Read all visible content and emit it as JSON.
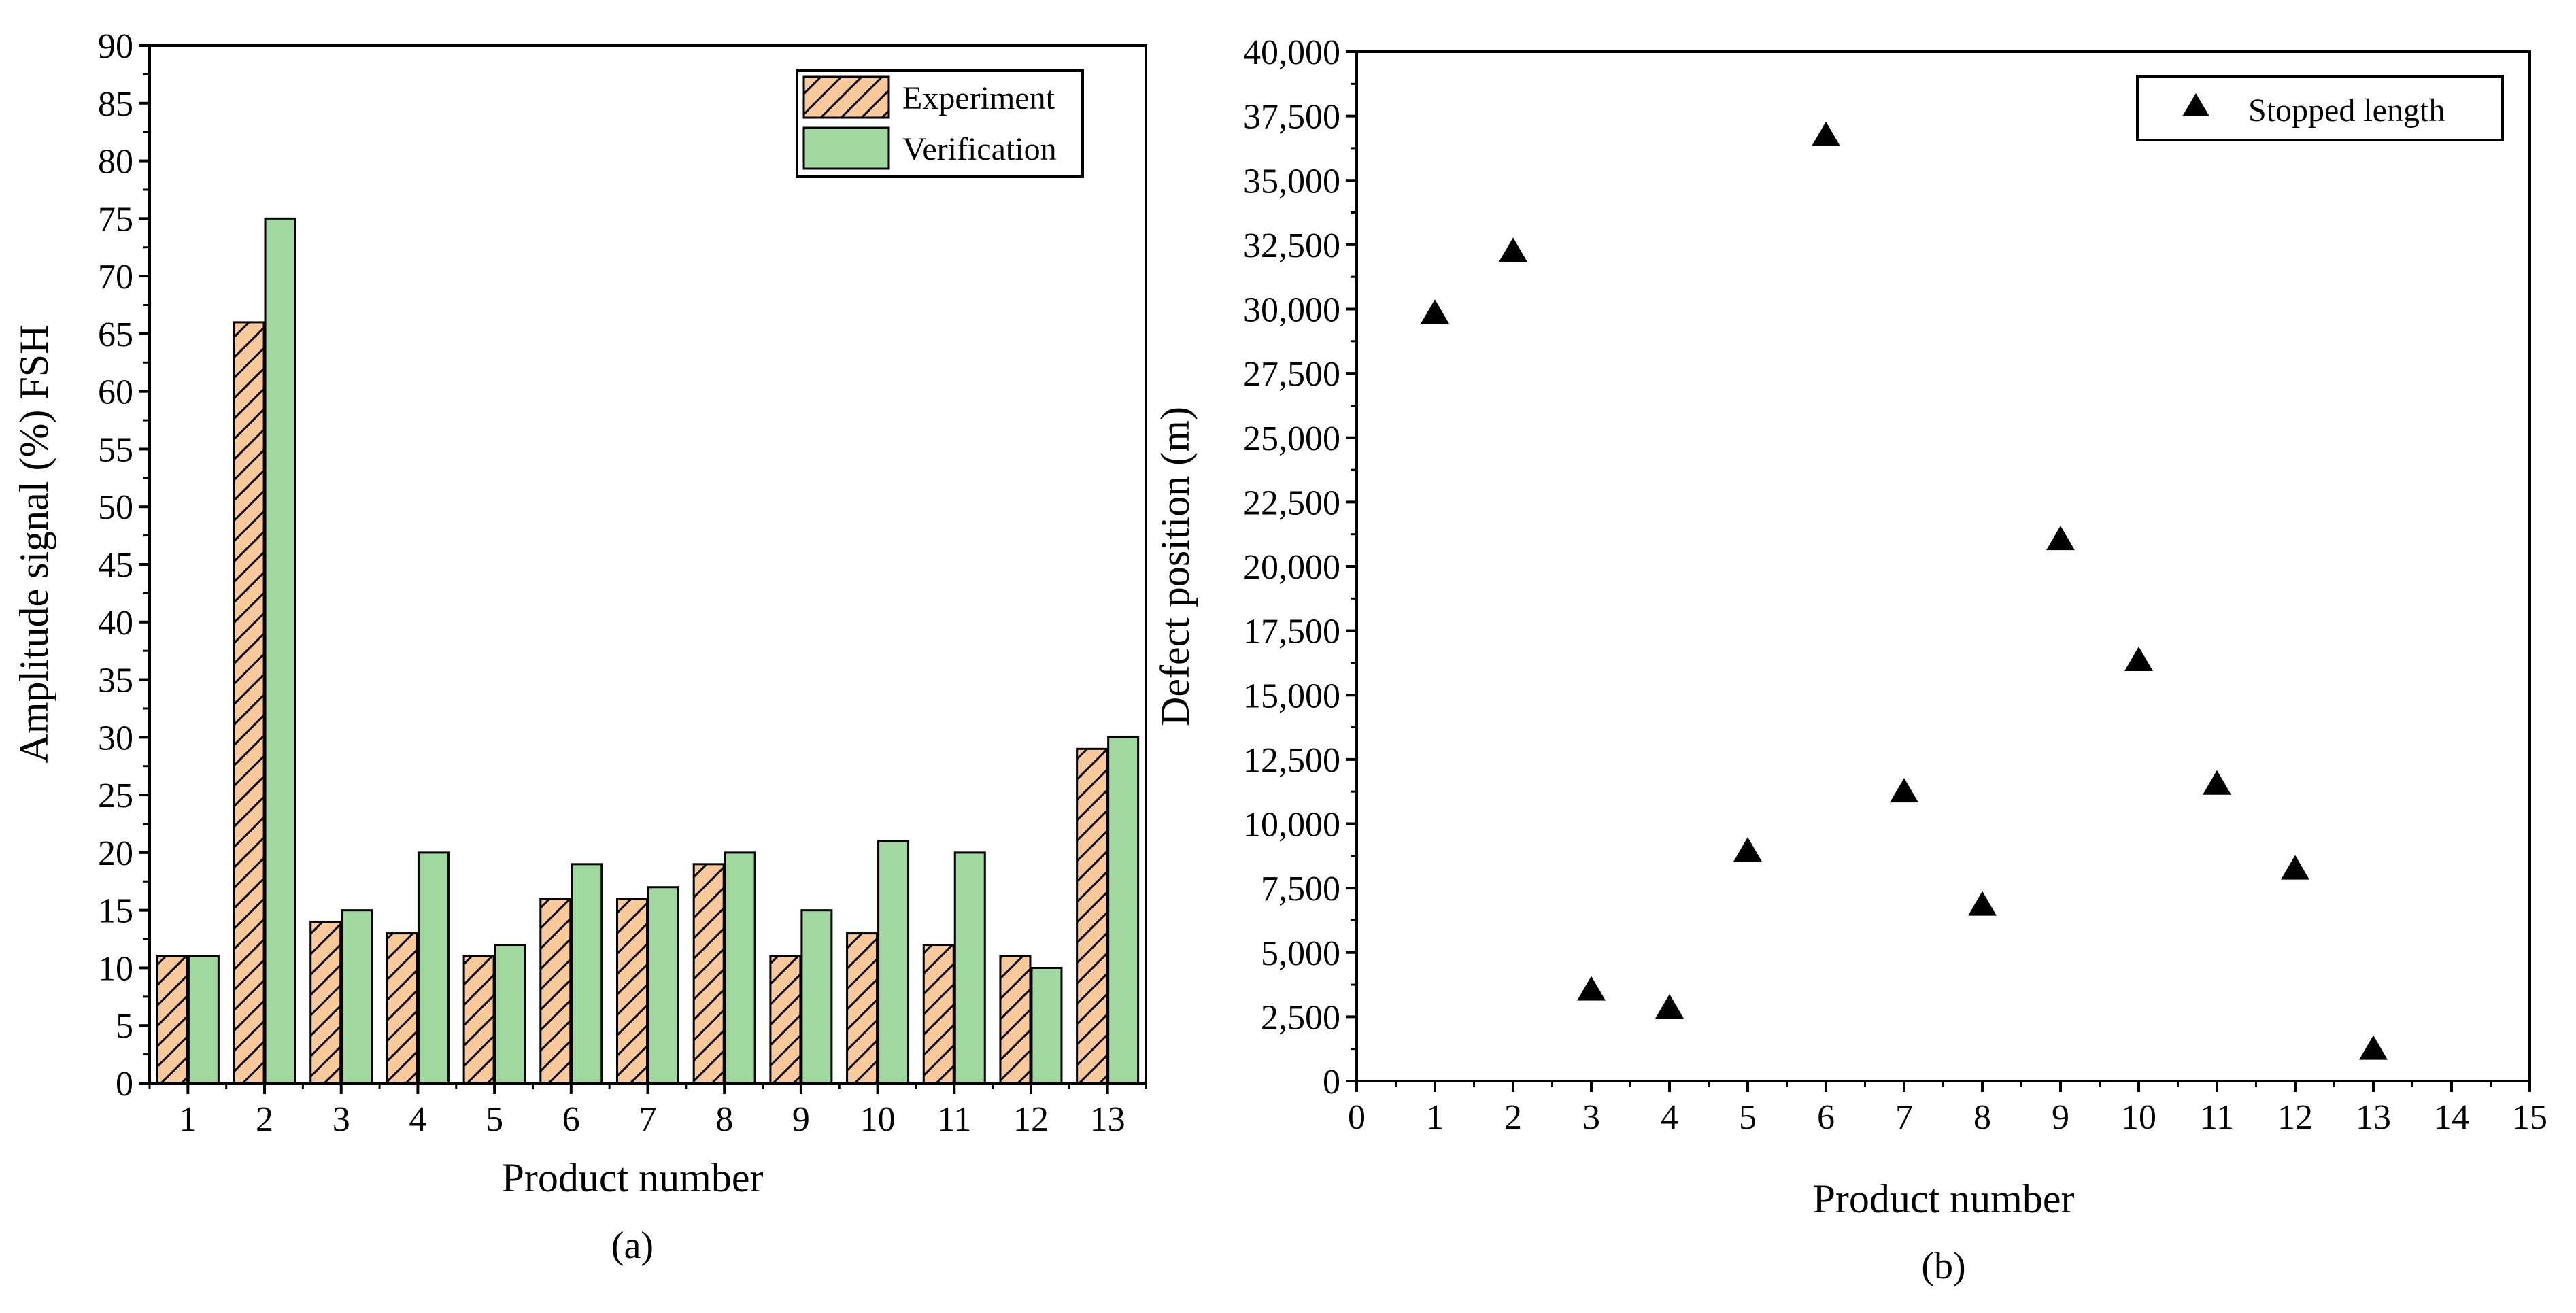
{
  "chart_data": [
    {
      "type": "bar",
      "caption": "(a)",
      "xlabel": "Product number",
      "ylabel": "Amplitude signal (%) FSH",
      "categories": [
        "1",
        "2",
        "3",
        "4",
        "5",
        "6",
        "7",
        "8",
        "9",
        "10",
        "11",
        "12",
        "13"
      ],
      "ylim": [
        0,
        90
      ],
      "yticks": [
        "0",
        "5",
        "10",
        "15",
        "20",
        "25",
        "30",
        "35",
        "40",
        "45",
        "50",
        "55",
        "60",
        "65",
        "70",
        "75",
        "80",
        "85",
        "90"
      ],
      "legend_position": "top-right",
      "series": [
        {
          "name": "Experiment",
          "values": [
            11,
            66,
            14,
            13,
            11,
            16,
            16,
            19,
            11,
            13,
            12,
            11,
            29
          ],
          "color": "#F9C89B",
          "pattern": "hatched"
        },
        {
          "name": "Verification",
          "values": [
            11,
            75,
            15,
            20,
            12,
            19,
            17,
            20,
            15,
            21,
            20,
            10,
            30
          ],
          "color": "#A0D8A0"
        }
      ]
    },
    {
      "type": "scatter",
      "caption": "(b)",
      "xlabel": "Product number",
      "ylabel": "Defect position (m)",
      "xlim": [
        0,
        15
      ],
      "ylim": [
        0,
        40000
      ],
      "xticks": [
        "0",
        "1",
        "2",
        "3",
        "4",
        "5",
        "6",
        "7",
        "8",
        "9",
        "10",
        "11",
        "12",
        "13",
        "14",
        "15"
      ],
      "yticks": [
        "0",
        "2,500",
        "5,000",
        "7,500",
        "10,000",
        "12,500",
        "15,000",
        "17,500",
        "20,000",
        "22,500",
        "25,000",
        "27,500",
        "30,000",
        "32,500",
        "35,000",
        "37,500",
        "40,000"
      ],
      "legend_position": "top-right",
      "series": [
        {
          "name": "Stopped length",
          "marker": "triangle",
          "color": "#000000",
          "x": [
            1,
            2,
            3,
            4,
            5,
            6,
            7,
            8,
            9,
            10,
            11,
            12,
            13
          ],
          "y": [
            29800,
            32200,
            3500,
            2800,
            8900,
            36700,
            11200,
            6800,
            21000,
            16300,
            11500,
            8200,
            1200
          ]
        }
      ]
    }
  ]
}
